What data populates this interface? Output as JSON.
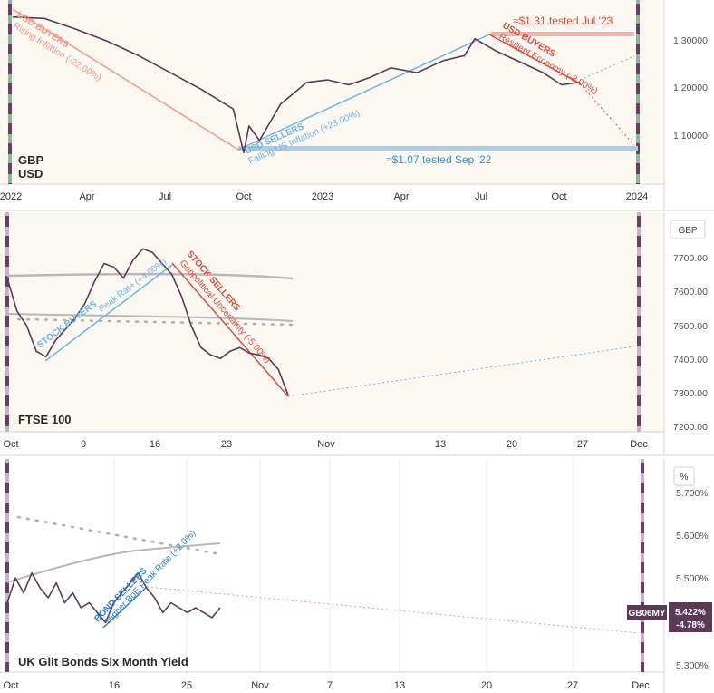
{
  "colors": {
    "panel_bg": "#faf8f1",
    "axis_bg": "#ffffff",
    "price_line": "#5b3a55",
    "seller_blue": "#6fb2e8",
    "buyer_red": "#e04a3a",
    "falling_salmon": "#ef9a8a",
    "ma_gray": "#b8b8b8",
    "marker_purple": "#6b3e63",
    "marker_green": "#8ab89a",
    "badge_bg": "#5b3a55"
  },
  "chart_data": [
    {
      "type": "line",
      "name": "gbpusd",
      "title_line1": "GBP",
      "title_line2": "USD",
      "x_ticks": [
        "2022",
        "Apr",
        "Jul",
        "Oct",
        "2023",
        "Apr",
        "Jul",
        "Oct",
        "2024"
      ],
      "y_ticks": [
        "1.30000",
        "1.20000",
        "1.10000"
      ],
      "ylim": [
        1.01,
        1.39
      ],
      "xlim_months": [
        0,
        24.4
      ],
      "x_months": [
        0,
        1.2,
        2.4,
        3.6,
        4.8,
        6.0,
        7.2,
        8.4,
        8.8,
        9.0,
        9.4,
        10.2,
        11.2,
        12.0,
        12.8,
        13.6,
        14.4,
        15.4,
        16.4,
        17.2,
        17.6,
        18.4,
        19.4,
        20.2,
        20.9,
        21.6
      ],
      "y_values": [
        1.355,
        1.352,
        1.33,
        1.305,
        1.275,
        1.24,
        1.205,
        1.165,
        1.075,
        1.13,
        1.1,
        1.175,
        1.22,
        1.225,
        1.215,
        1.23,
        1.25,
        1.24,
        1.265,
        1.275,
        1.31,
        1.285,
        1.26,
        1.24,
        1.215,
        1.22
      ],
      "annotations": {
        "usd_buyers_left": "USD BUYERS",
        "rising_inflation": "Rising Inflation (-22.00%)",
        "usd_sellers": "USD SELLERS",
        "falling_inflation": "Falling US Inflation (+23.00%)",
        "usd_buyers_right": "USD BUYERS",
        "resilient_economy": "Resilient Economy (-8.00%)",
        "tested_high": "≈$1.31 tested Jul '23",
        "tested_low": "≈$1.07 tested Sep '22"
      }
    },
    {
      "type": "line",
      "name": "ftse100",
      "title": "FTSE 100",
      "unit": "GBP",
      "x_ticks": [
        "Oct",
        "9",
        "16",
        "23",
        "Nov",
        "13",
        "20",
        "27",
        "Dec"
      ],
      "y_ticks": [
        "7700.00",
        "7600.00",
        "7500.00",
        "7400.00",
        "7300.00",
        "7200.00"
      ],
      "ylim": [
        7190,
        7790
      ],
      "x_days": [
        0,
        1,
        2,
        3,
        4,
        5,
        6,
        7,
        8,
        9,
        10,
        11,
        12,
        13,
        14,
        15,
        16,
        17,
        18,
        19,
        20,
        21,
        22,
        23,
        24,
        25,
        26,
        27,
        28,
        29
      ],
      "y_values": [
        7610,
        7520,
        7480,
        7410,
        7395,
        7440,
        7470,
        7500,
        7540,
        7600,
        7650,
        7640,
        7610,
        7660,
        7690,
        7680,
        7650,
        7620,
        7560,
        7480,
        7420,
        7400,
        7390,
        7410,
        7420,
        7405,
        7400,
        7390,
        7360,
        7290
      ],
      "annotations": {
        "stock_buyers": "STOCK BUYERS",
        "peak_rate": "Peak Rate (+4.00%)",
        "stock_sellers": "STOCK SELLERS",
        "geopolitical": "Geopolitical Uncertainty (-5.00%)"
      }
    },
    {
      "type": "line",
      "name": "uk_gilt_6m",
      "title": "UK Gilt Bonds Six Month Yield",
      "unit": "%",
      "x_ticks": [
        "Oct",
        "16",
        "25",
        "Nov",
        "7",
        "13",
        "20",
        "27",
        "Dec"
      ],
      "y_ticks": [
        "5.700%",
        "5.600%",
        "5.500%",
        "5.300%"
      ],
      "ylim": [
        5.29,
        5.72
      ],
      "x_days": [
        0,
        1,
        2,
        3,
        4,
        5,
        6,
        7,
        8,
        9,
        10,
        11,
        12,
        13,
        14,
        15,
        16,
        17,
        18,
        19,
        20,
        21,
        22,
        23,
        24,
        25,
        26
      ],
      "y_values": [
        5.43,
        5.48,
        5.45,
        5.49,
        5.46,
        5.44,
        5.47,
        5.43,
        5.45,
        5.42,
        5.43,
        5.41,
        5.39,
        5.43,
        5.45,
        5.47,
        5.49,
        5.46,
        5.44,
        5.41,
        5.43,
        5.42,
        5.41,
        5.42,
        5.41,
        5.4,
        5.42
      ],
      "badge": {
        "symbol": "GB06MY",
        "value": "5.422%",
        "change": "-4.78%"
      },
      "annotations": {
        "bond_sellers": "BOND SELLERS",
        "higher_peak": "Higher BoE Peak Rate (+2.0%)"
      }
    }
  ]
}
